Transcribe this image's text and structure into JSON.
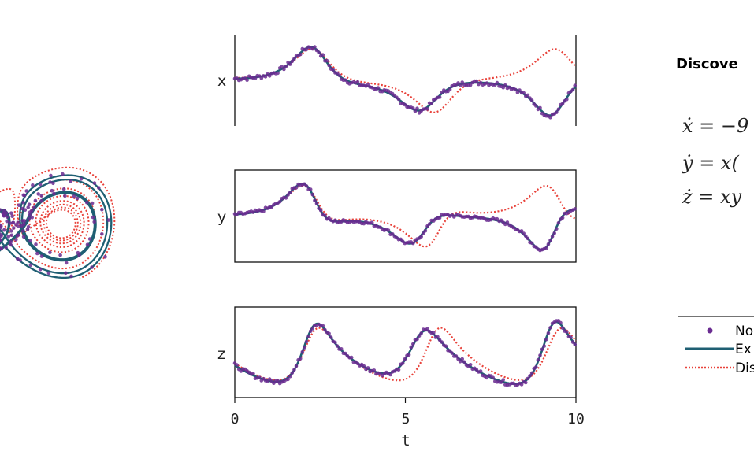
{
  "chart_data": [
    {
      "type": "scatter",
      "panel": "phase-portrait",
      "series": [
        {
          "name": "No",
          "style": "points",
          "color": "#6a2c91"
        },
        {
          "name": "Ex",
          "style": "solid",
          "color": "#1f5f73"
        },
        {
          "name": "Dis",
          "style": "dotted",
          "color": "#e8423a"
        }
      ]
    },
    {
      "type": "line",
      "panel": "time-series",
      "xlabel": "t",
      "xlim": [
        0,
        10
      ],
      "xticks": [
        "0",
        "5",
        "10"
      ],
      "subplots": [
        {
          "ylabel": "x"
        },
        {
          "ylabel": "y"
        },
        {
          "ylabel": "z"
        }
      ],
      "series": [
        {
          "name": "No",
          "style": "points",
          "color": "#6a2c91"
        },
        {
          "name": "Ex",
          "style": "solid",
          "color": "#1f5f73"
        },
        {
          "name": "Dis",
          "style": "dotted",
          "color": "#e8423a"
        }
      ],
      "grid": false
    }
  ],
  "sidebar": {
    "title": "Discove",
    "equations": [
      "ẋ = −9",
      "ẏ = x(",
      "ż = xy"
    ]
  },
  "legend": {
    "entries": [
      {
        "label": "No",
        "style": "points",
        "color": "#6a2c91"
      },
      {
        "label": "Ex",
        "style": "solid",
        "color": "#1f5f73"
      },
      {
        "label": "Dis",
        "style": "dotted",
        "color": "#e8423a"
      }
    ]
  }
}
